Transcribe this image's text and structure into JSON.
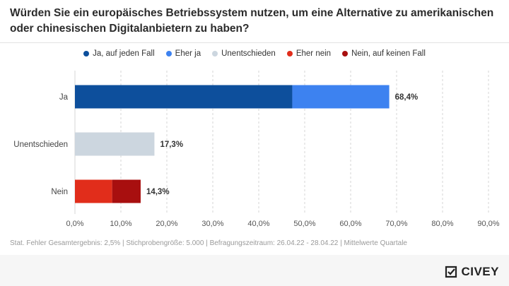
{
  "title": "Würden Sie ein europäisches Betriebssystem nutzen, um eine Alternative zu amerikanischen oder chinesischen Digitalanbietern zu haben?",
  "footnote": "Stat. Fehler Gesamtergebnis: 2,5% | Stichprobengröße: 5.000 | Befragungszeitraum: 26.04.22 - 28.04.22 | Mittelwerte Quartale",
  "brand": "CIVEY",
  "brand_icon": "civey-logo-icon",
  "colors": {
    "ja_auf_jeden_fall": "#0d4f9c",
    "eher_ja": "#3d82f0",
    "unentschieden": "#ccd6df",
    "eher_nein": "#e12d1b",
    "nein_auf_keinen_fall": "#a80f0f"
  },
  "chart_data": {
    "type": "bar",
    "orientation": "horizontal",
    "stacked": true,
    "categories": [
      "Ja",
      "Unentschieden",
      "Nein"
    ],
    "series": [
      {
        "name": "Ja, auf jeden Fall",
        "color": "#0d4f9c",
        "values": [
          47.3,
          0,
          0
        ]
      },
      {
        "name": "Eher ja",
        "color": "#3d82f0",
        "values": [
          21.1,
          0,
          0
        ]
      },
      {
        "name": "Unentschieden",
        "color": "#ccd6df",
        "values": [
          0,
          17.3,
          0
        ]
      },
      {
        "name": "Eher nein",
        "color": "#e12d1b",
        "values": [
          0,
          0,
          8.1
        ]
      },
      {
        "name": "Nein, auf keinen Fall",
        "color": "#a80f0f",
        "values": [
          0,
          0,
          6.2
        ]
      }
    ],
    "totals": [
      68.4,
      17.3,
      14.3
    ],
    "total_labels": [
      "68,4%",
      "17,3%",
      "14,3%"
    ],
    "xlim": [
      0,
      90
    ],
    "xticks": [
      0,
      10,
      20,
      30,
      40,
      50,
      60,
      70,
      80,
      90
    ],
    "xtick_labels": [
      "0,0%",
      "10,0%",
      "20,0%",
      "30,0%",
      "40,0%",
      "50,0%",
      "60,0%",
      "70,0%",
      "80,0%",
      "90,0%"
    ],
    "grid": "vertical dashed",
    "legend_position": "top"
  }
}
